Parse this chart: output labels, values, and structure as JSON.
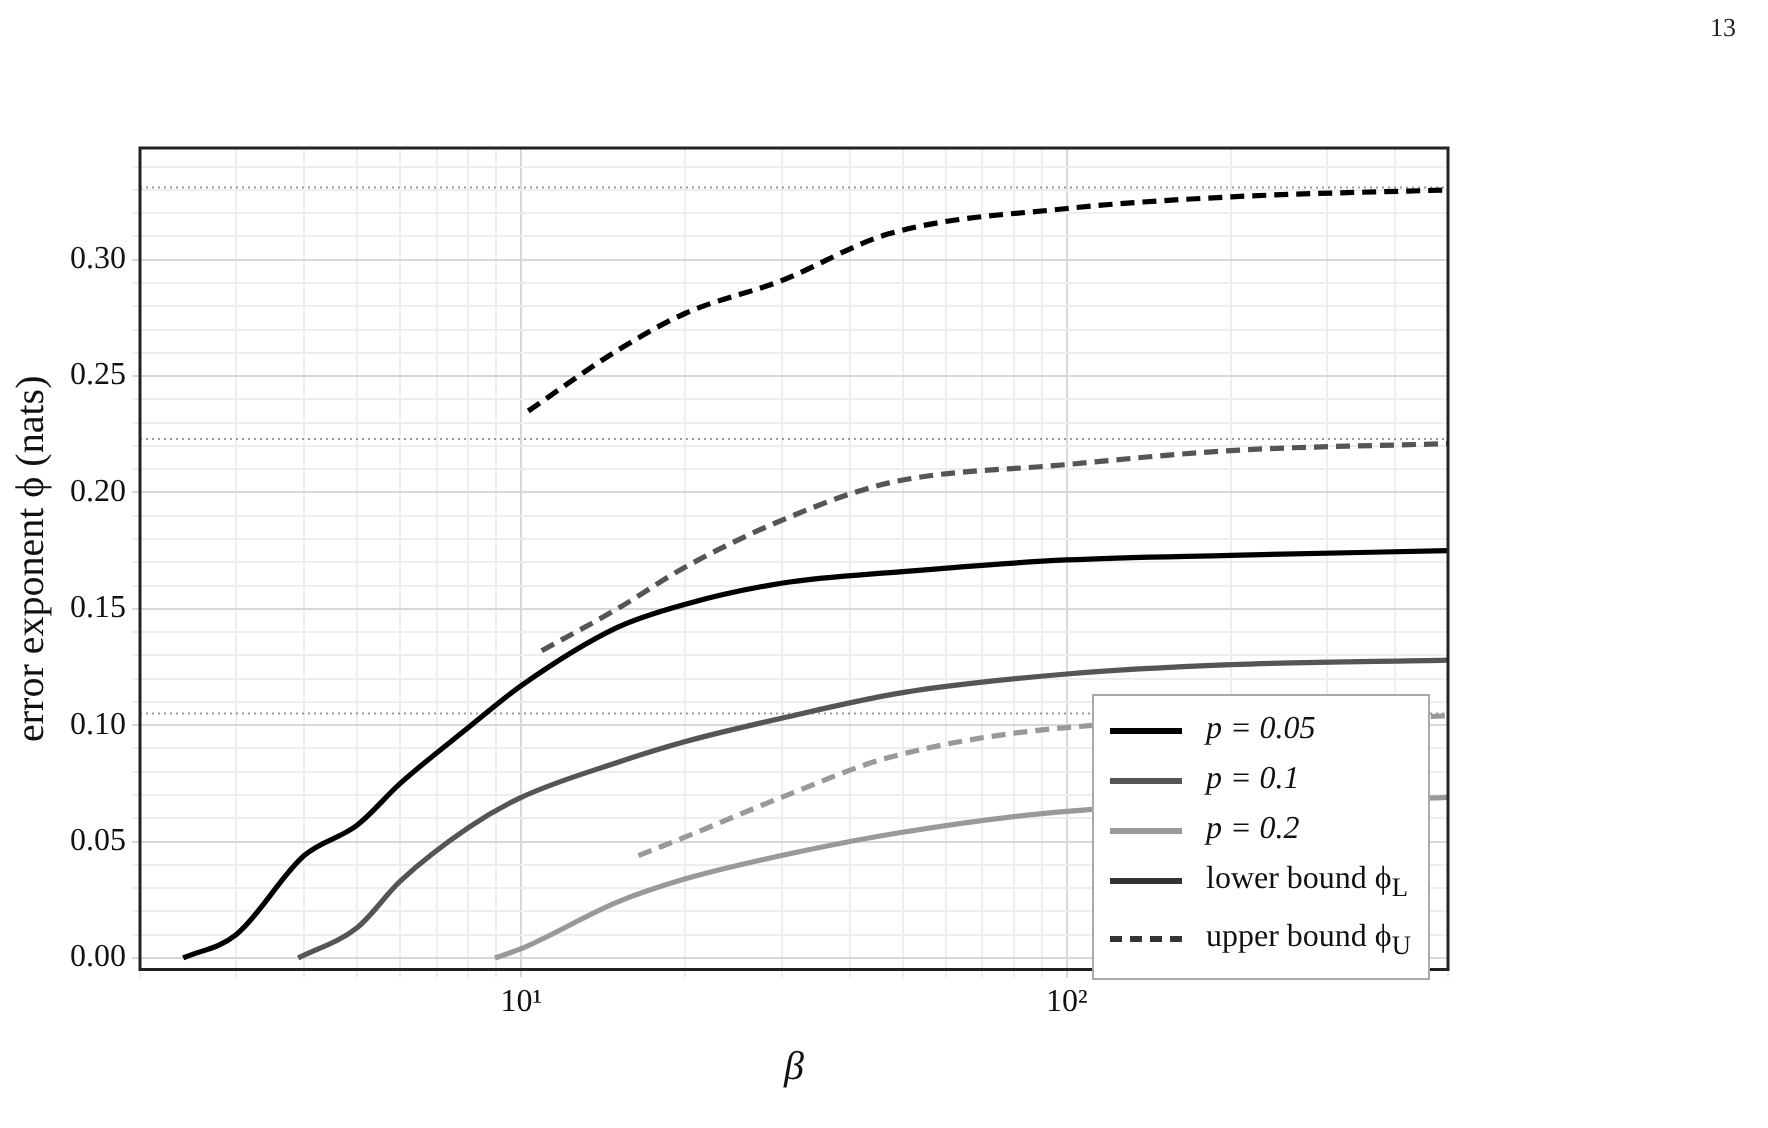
{
  "chart_data": {
    "type": "line",
    "xlabel": "β",
    "ylabel": "error exponent ϕ (nats)",
    "log": "x",
    "grid": true,
    "legend": "bottom right",
    "xlim": [
      2,
      500
    ],
    "xticks": [
      {
        "value": 2,
        "label": null
      },
      {
        "value": 3,
        "label": null
      },
      {
        "value": 4,
        "label": null
      },
      {
        "value": 5,
        "label": null
      },
      {
        "value": 6,
        "label": null
      },
      {
        "value": 7,
        "label": null
      },
      {
        "value": 8,
        "label": null
      },
      {
        "value": 9,
        "label": null
      },
      {
        "value": 10,
        "label": "10¹"
      },
      {
        "value": 20,
        "label": null
      },
      {
        "value": 30,
        "label": null
      },
      {
        "value": 40,
        "label": null
      },
      {
        "value": 50,
        "label": null
      },
      {
        "value": 60,
        "label": null
      },
      {
        "value": 70,
        "label": null
      },
      {
        "value": 80,
        "label": null
      },
      {
        "value": 90,
        "label": null
      },
      {
        "value": 100,
        "label": "10²"
      },
      {
        "value": 200,
        "label": null
      },
      {
        "value": 300,
        "label": null
      },
      {
        "value": 400,
        "label": null
      },
      {
        "value": 500,
        "label": null
      }
    ],
    "ylim": [
      -0.005,
      0.348
    ],
    "yticks": [
      {
        "value": 0,
        "label": "0.00"
      },
      {
        "value": 0.01,
        "label": null
      },
      {
        "value": 0.02,
        "label": null
      },
      {
        "value": 0.03,
        "label": null
      },
      {
        "value": 0.04,
        "label": null
      },
      {
        "value": 0.05,
        "label": "0.05"
      },
      {
        "value": 0.06,
        "label": null
      },
      {
        "value": 0.07,
        "label": null
      },
      {
        "value": 0.08,
        "label": null
      },
      {
        "value": 0.09,
        "label": null
      },
      {
        "value": 0.1,
        "label": "0.10"
      },
      {
        "value": 0.11,
        "label": null
      },
      {
        "value": 0.12,
        "label": null
      },
      {
        "value": 0.13,
        "label": null
      },
      {
        "value": 0.14,
        "label": null
      },
      {
        "value": 0.15,
        "label": "0.15"
      },
      {
        "value": 0.16,
        "label": null
      },
      {
        "value": 0.17,
        "label": null
      },
      {
        "value": 0.18,
        "label": null
      },
      {
        "value": 0.19,
        "label": null
      },
      {
        "value": 0.2,
        "label": "0.20"
      },
      {
        "value": 0.21,
        "label": null
      },
      {
        "value": 0.22,
        "label": null
      },
      {
        "value": 0.23,
        "label": null
      },
      {
        "value": 0.24,
        "label": null
      },
      {
        "value": 0.25,
        "label": "0.25"
      },
      {
        "value": 0.26,
        "label": null
      },
      {
        "value": 0.27,
        "label": null
      },
      {
        "value": 0.28,
        "label": null
      },
      {
        "value": 0.29,
        "label": null
      },
      {
        "value": 0.3,
        "label": "0.30"
      },
      {
        "value": 0.31,
        "label": null
      },
      {
        "value": 0.32,
        "label": null
      },
      {
        "value": 0.33,
        "label": null
      },
      {
        "value": 0.34,
        "label": null
      }
    ],
    "series": [
      {
        "name": "p = 0.05",
        "color": "#000000",
        "line_style": "solid",
        "x": [
          2.4,
          3,
          4,
          5,
          6,
          8,
          10,
          15,
          20,
          30,
          50,
          100,
          200,
          500
        ],
        "values": [
          0,
          0.01,
          0.044,
          0.057,
          0.075,
          0.099,
          0.117,
          0.142,
          0.152,
          0.161,
          0.166,
          0.171,
          0.173,
          0.175
        ]
      },
      {
        "name": "p = 0.1",
        "color": "#555555",
        "line_style": "solid",
        "x": [
          3.9,
          5,
          6,
          8,
          10,
          15,
          20,
          30,
          50,
          100,
          200,
          500
        ],
        "values": [
          0,
          0.013,
          0.033,
          0.056,
          0.069,
          0.084,
          0.093,
          0.103,
          0.114,
          0.122,
          0.126,
          0.128
        ]
      },
      {
        "name": "p = 0.2",
        "color": "#999999",
        "line_style": "solid",
        "x": [
          8.95,
          10,
          15,
          20,
          30,
          50,
          100,
          500
        ],
        "values": [
          0,
          0.004,
          0.024,
          0.034,
          0.044,
          0.054,
          0.063,
          0.069
        ]
      },
      {
        "color": "#000000",
        "line_style": "dashed",
        "x": [
          10.3,
          15,
          20,
          30,
          47,
          100,
          200,
          500
        ],
        "values": [
          0.235,
          0.261,
          0.277,
          0.291,
          0.311,
          0.322,
          0.327,
          0.33
        ]
      },
      {
        "color": "#555555",
        "line_style": "dashed",
        "x": [
          10.9,
          15,
          20,
          30,
          47,
          100,
          200,
          500
        ],
        "values": [
          0.132,
          0.15,
          0.168,
          0.188,
          0.204,
          0.212,
          0.218,
          0.221
        ]
      },
      {
        "color": "#999999",
        "line_style": "dashed",
        "x": [
          16.4,
          20,
          30,
          47,
          100,
          500
        ],
        "values": [
          0.044,
          0.052,
          0.069,
          0.086,
          0.099,
          0.104
        ]
      }
    ],
    "ref_lines": [
      {
        "axis": "y",
        "value": 0.331,
        "color": "#999999",
        "line_style": "dotted"
      },
      {
        "axis": "y",
        "value": 0.223,
        "color": "#999999",
        "line_style": "dotted"
      },
      {
        "axis": "y",
        "value": 0.105,
        "color": "#999999",
        "line_style": "dotted"
      }
    ],
    "annotations": [
      "lower bound ϕ$_{L}$",
      "upper bound ϕ$_{U}$",
      "13"
    ]
  }
}
